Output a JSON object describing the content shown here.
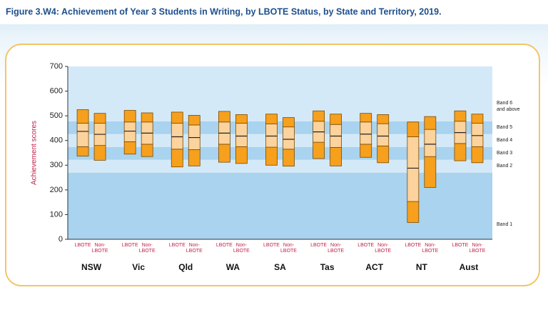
{
  "chart_data": {
    "type": "percentile-bar",
    "title": "Figure 3.W4: Achievement of Year 3 Students in Writing, by LBOTE Status, by State and Territory, 2019.",
    "y_label": "Achievement scores",
    "categories": [
      "NSW",
      "Vic",
      "Qld",
      "WA",
      "SA",
      "Tas",
      "ACT",
      "NT",
      "Aust"
    ],
    "series": [
      {
        "name": "LBOTE",
        "dark_color": "#f6a01e",
        "light_color": "#fcd39c",
        "p5": [
          337,
          345,
          293,
          312,
          300,
          327,
          332,
          68,
          318
        ],
        "p20": [
          375,
          395,
          365,
          385,
          373,
          393,
          385,
          153,
          388
        ],
        "mean": [
          437,
          438,
          415,
          430,
          418,
          435,
          426,
          288,
          432
        ],
        "p80": [
          470,
          475,
          470,
          475,
          467,
          478,
          475,
          415,
          478
        ],
        "p95": [
          525,
          522,
          515,
          518,
          507,
          520,
          510,
          475,
          520
        ]
      },
      {
        "name": "Non-LBOTE",
        "dark_color": "#f6a01e",
        "light_color": "#fcd39c",
        "p5": [
          320,
          335,
          297,
          307,
          296,
          297,
          310,
          210,
          310
        ],
        "p20": [
          380,
          385,
          363,
          375,
          365,
          372,
          378,
          335,
          375
        ],
        "mean": [
          425,
          430,
          412,
          418,
          405,
          418,
          418,
          385,
          420
        ],
        "p80": [
          470,
          475,
          463,
          470,
          455,
          465,
          468,
          445,
          470
        ],
        "p95": [
          510,
          512,
          502,
          505,
          493,
          507,
          505,
          497,
          507
        ]
      }
    ],
    "bands": [
      {
        "label": "Band 1",
        "from": 0,
        "to": 270,
        "color": "#a9d3ef"
      },
      {
        "label": "Band 2",
        "from": 270,
        "to": 322,
        "color": "#d4e9f8"
      },
      {
        "label": "Band 3",
        "from": 322,
        "to": 374,
        "color": "#a9d3ef"
      },
      {
        "label": "Band 4",
        "from": 374,
        "to": 426,
        "color": "#d4e9f8"
      },
      {
        "label": "Band 5",
        "from": 426,
        "to": 478,
        "color": "#a9d3ef"
      },
      {
        "label": "Band 6 and above",
        "from": 478,
        "to": 700,
        "color": "#d4e9f8"
      }
    ],
    "ylim": [
      0,
      700
    ],
    "yticks": [
      0,
      100,
      200,
      300,
      400,
      500,
      600,
      700
    ]
  }
}
